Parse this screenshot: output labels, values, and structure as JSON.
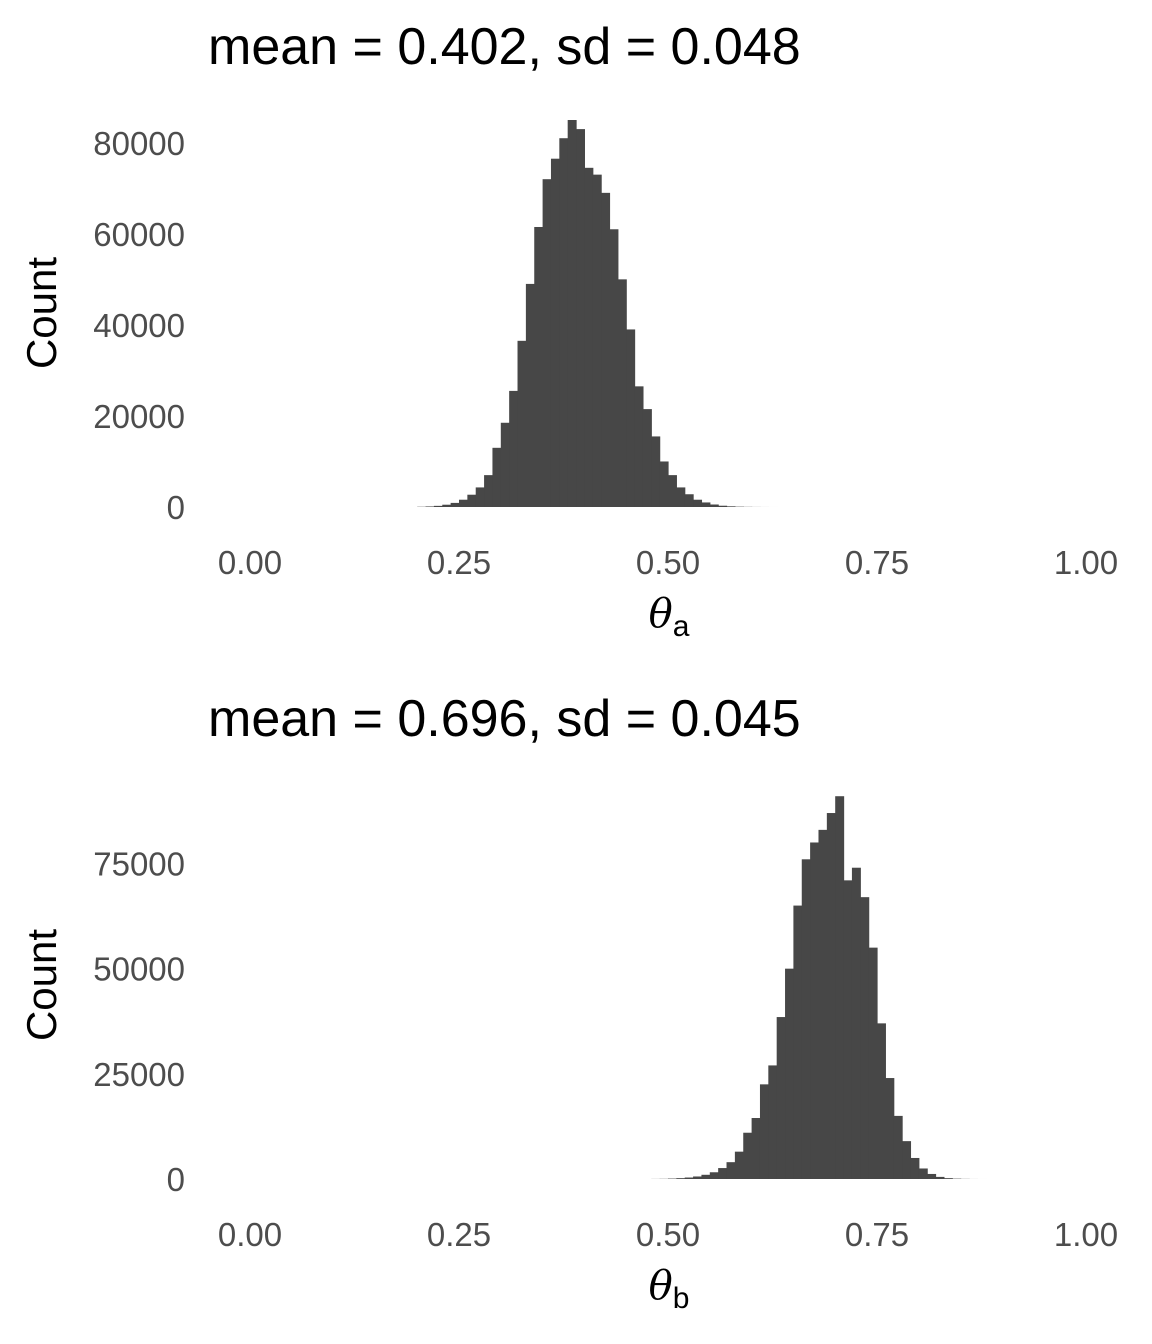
{
  "chart_data": [
    {
      "type": "bar",
      "title": "mean = 0.402, sd = 0.048",
      "xlabel_symbol": "θ",
      "xlabel_subscript": "a",
      "ylabel": "Count",
      "xlim": [
        0,
        1
      ],
      "ylim": [
        0,
        85000
      ],
      "x_ticks": [
        0,
        0.25,
        0.5,
        0.75,
        1
      ],
      "x_tick_labels": [
        "0.00",
        "0.25",
        "0.50",
        "0.75",
        "1.00"
      ],
      "y_ticks": [
        0,
        20000,
        40000,
        60000,
        80000
      ],
      "y_tick_labels": [
        "0",
        "20000",
        "40000",
        "60000",
        "80000"
      ],
      "bin_width": 0.01,
      "bin_starts": [
        0.2,
        0.21,
        0.22,
        0.23,
        0.24,
        0.25,
        0.26,
        0.27,
        0.28,
        0.29,
        0.3,
        0.31,
        0.32,
        0.33,
        0.34,
        0.35,
        0.36,
        0.37,
        0.38,
        0.39,
        0.4,
        0.41,
        0.42,
        0.43,
        0.44,
        0.45,
        0.46,
        0.47,
        0.48,
        0.49,
        0.5,
        0.51,
        0.52,
        0.53,
        0.54,
        0.55,
        0.56,
        0.57,
        0.58,
        0.59,
        0.6,
        0.61,
        0.62
      ],
      "counts": [
        50,
        120,
        250,
        500,
        900,
        1600,
        2700,
        4300,
        7000,
        13000,
        18500,
        25500,
        36500,
        49000,
        61500,
        72000,
        76500,
        81000,
        85000,
        83000,
        74500,
        73000,
        69000,
        61000,
        50000,
        39000,
        26500,
        21500,
        15500,
        10000,
        7000,
        4300,
        2800,
        1600,
        1000,
        550,
        280,
        150,
        70,
        35,
        15,
        6,
        2
      ],
      "bar_color": "#474747",
      "grid": false
    },
    {
      "type": "bar",
      "title": "mean = 0.696, sd = 0.045",
      "xlabel_symbol": "θ",
      "xlabel_subscript": "b",
      "ylabel": "Count",
      "xlim": [
        0,
        1
      ],
      "ylim": [
        0,
        92000
      ],
      "x_ticks": [
        0,
        0.25,
        0.5,
        0.75,
        1
      ],
      "x_tick_labels": [
        "0.00",
        "0.25",
        "0.50",
        "0.75",
        "1.00"
      ],
      "y_ticks": [
        0,
        25000,
        50000,
        75000
      ],
      "y_tick_labels": [
        "0",
        "25000",
        "50000",
        "75000"
      ],
      "bin_width": 0.01,
      "bin_starts": [
        0.48,
        0.49,
        0.5,
        0.51,
        0.52,
        0.53,
        0.54,
        0.55,
        0.56,
        0.57,
        0.58,
        0.59,
        0.6,
        0.61,
        0.62,
        0.63,
        0.64,
        0.65,
        0.66,
        0.67,
        0.68,
        0.69,
        0.7,
        0.71,
        0.72,
        0.73,
        0.74,
        0.75,
        0.76,
        0.77,
        0.78,
        0.79,
        0.8,
        0.81,
        0.82,
        0.83,
        0.84,
        0.85,
        0.86,
        0.87
      ],
      "counts": [
        20,
        40,
        100,
        200,
        350,
        600,
        1000,
        1600,
        2600,
        4000,
        6500,
        11000,
        14500,
        22500,
        27000,
        38500,
        50000,
        65000,
        76000,
        80000,
        83000,
        87000,
        91000,
        71000,
        74000,
        67000,
        55000,
        37000,
        24000,
        15000,
        9000,
        5000,
        2500,
        1200,
        500,
        200,
        80,
        30,
        10,
        3
      ],
      "bar_color": "#474747",
      "grid": false
    }
  ]
}
